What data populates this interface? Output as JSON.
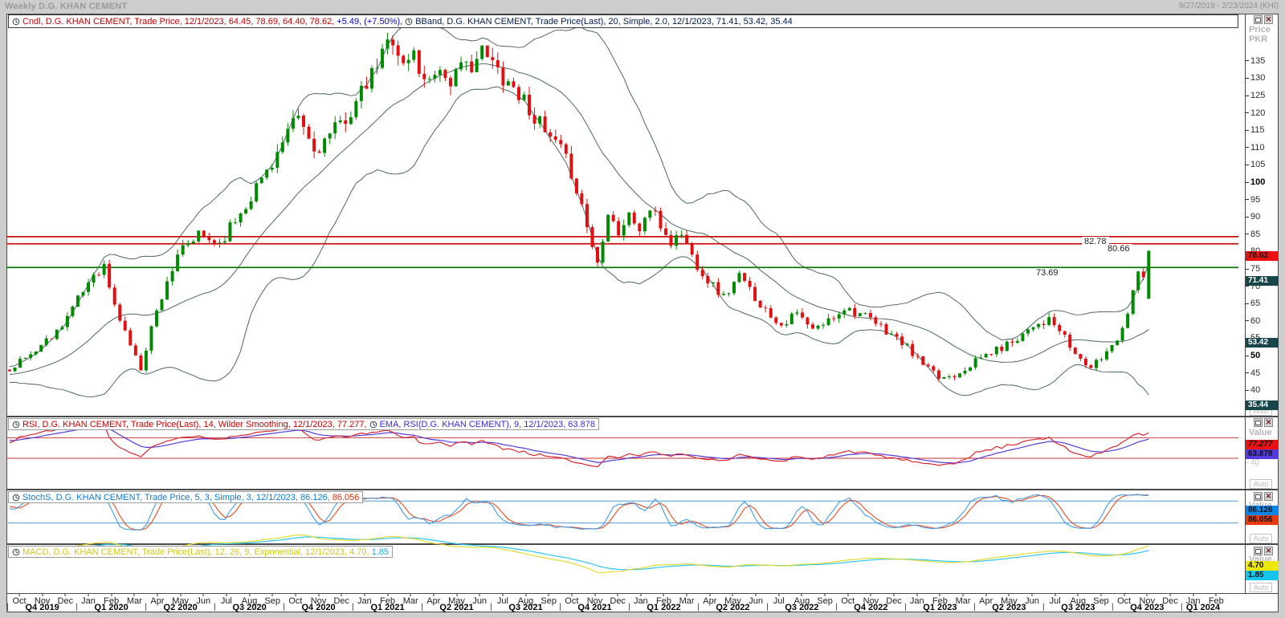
{
  "window": {
    "title": "Weekly D.G. KHAN CEMENT",
    "date_range": "9/27/2019 - 2/23/2024 (KHI)"
  },
  "panels": {
    "price": {
      "legend": {
        "candle": "Cndl, D.G. KHAN CEMENT, Trade Price,  12/1/2023, 64.45, 78.69, 64.40, 78.62,",
        "change": "+5.49, (+7.50%),",
        "bband": "BBand, D.G. KHAN CEMENT, Trade Price(Last),  20, Simple, 2.0,  12/1/2023, 71.41, 53.42, 35.44"
      },
      "axis_title_1": "Price",
      "axis_title_2": "PKR",
      "ticks": [
        135,
        130,
        125,
        120,
        115,
        110,
        105,
        100,
        95,
        90,
        85,
        80,
        75,
        70,
        65,
        60,
        55,
        50,
        45,
        40
      ],
      "bold_ticks": [
        100,
        50
      ],
      "last_price_label": "78.62",
      "bband_labels": [
        "71.41",
        "53.42",
        "35.44"
      ],
      "levels": [
        {
          "value": 82.78,
          "label": "82.78",
          "color": "#cc1111"
        },
        {
          "value": 80.66,
          "label": "80.66",
          "color": "#cc1111"
        },
        {
          "value": 73.69,
          "label": "73.69",
          "color": "#0a7a0a"
        }
      ],
      "auto_label": "Auto"
    },
    "rsi": {
      "legend_rsi": "RSI, D.G. KHAN CEMENT, Trade Price(Last),  14, Wilder Smoothing,  12/1/2023, 77.277,",
      "legend_ema": "EMA, RSI(D.G. KHAN CEMENT),  9,  12/1/2023, 63.878",
      "axis_title": "Value",
      "value_label": "77.277",
      "ema_label": "63.878",
      "tick": "40",
      "ref_lines": [
        70,
        30
      ],
      "auto_label": "Auto"
    },
    "stoch": {
      "legend_k": "StochS, D.G. KHAN CEMENT, Trade Price,  5, 3, Simple, 3,  12/1/2023, 86.126,",
      "legend_d": "86.056",
      "axis_title": "Value",
      "k_label": "86.126",
      "d_label": "86.056",
      "tick": "50",
      "ref_lines": [
        80,
        20
      ],
      "auto_label": "Auto"
    },
    "macd": {
      "legend_macd": "MACD, D.G. KHAN CEMENT, Trade Price(Last),  12, 26, 9, Exponential,  12/1/2023, 4.70,",
      "legend_signal": "1.85",
      "axis_title": "Value",
      "macd_label": "4.70",
      "signal_label": "1.85",
      "auto_label": "Auto"
    }
  },
  "x_axis": {
    "months": [
      "Oct",
      "Nov",
      "Dec",
      "Jan",
      "Feb",
      "Mar",
      "Apr",
      "May",
      "Jun",
      "Jul",
      "Aug",
      "Sep",
      "Oct",
      "Nov",
      "Dec",
      "Jan",
      "Feb",
      "Mar",
      "Apr",
      "May",
      "Jun",
      "Jul",
      "Aug",
      "Sep",
      "Oct",
      "Nov",
      "Dec",
      "Jan",
      "Feb",
      "Mar",
      "Apr",
      "May",
      "Jun",
      "Jul",
      "Aug",
      "Sep",
      "Oct",
      "Nov",
      "Dec",
      "Jan",
      "Feb",
      "Mar",
      "Apr",
      "May",
      "Jun",
      "Jul",
      "Aug",
      "Sep",
      "Oct",
      "Nov",
      "Dec",
      "Jan",
      "Feb"
    ],
    "quarters": [
      "Q4 2019",
      "Q1 2020",
      "Q2 2020",
      "Q3 2020",
      "Q4 2020",
      "Q1 2021",
      "Q2 2021",
      "Q3 2021",
      "Q4 2021",
      "Q1 2022",
      "Q2 2022",
      "Q3 2022",
      "Q4 2022",
      "Q1 2023",
      "Q2 2023",
      "Q3 2023",
      "Q4 2023",
      "Q1 2024"
    ]
  },
  "chart_data": {
    "type": "candlestick",
    "symbol": "D.G. KHAN CEMENT",
    "interval": "weekly",
    "date_range": "9/27/2019 - 2/23/2024",
    "price_axis": {
      "unit": "PKR",
      "visible_range": [
        33,
        146
      ]
    },
    "last_candle": {
      "date": "12/1/2023",
      "o": 64.45,
      "h": 78.69,
      "l": 64.4,
      "c": 78.62,
      "change": "+5.49",
      "change_pct": "+7.50%"
    },
    "bollinger": {
      "period": 20,
      "method": "Simple",
      "width": 2.0,
      "upper": 71.41,
      "mid": 53.42,
      "lower": 35.44
    },
    "rsi": {
      "period": 14,
      "smoothing": "Wilder Smoothing",
      "value": 77.277,
      "ema_period": 9,
      "ema_value": 63.878,
      "ref_lines": [
        70,
        30
      ]
    },
    "stochastic": {
      "k": 5,
      "slowing": 3,
      "method": "Simple",
      "d": 3,
      "k_value": 86.126,
      "d_value": 86.056,
      "ref_lines": [
        80,
        20
      ]
    },
    "macd": {
      "fast": 12,
      "slow": 26,
      "signal": 9,
      "method": "Exponential",
      "macd_value": 4.7,
      "signal_value": 1.85
    },
    "horizontal_levels": [
      82.78,
      80.66,
      73.69
    ],
    "close_keypoints": [
      [
        -45,
        36
      ],
      [
        -30,
        38
      ],
      [
        -20,
        40
      ],
      [
        -10,
        42
      ],
      [
        -4,
        43
      ],
      [
        0,
        44
      ],
      [
        4,
        48
      ],
      [
        9,
        55
      ],
      [
        13,
        64
      ],
      [
        16,
        72
      ],
      [
        18,
        74
      ],
      [
        20,
        62
      ],
      [
        22,
        55
      ],
      [
        24,
        47
      ],
      [
        25,
        44
      ],
      [
        27,
        56
      ],
      [
        30,
        70
      ],
      [
        33,
        79
      ],
      [
        36,
        83
      ],
      [
        40,
        81
      ],
      [
        44,
        90
      ],
      [
        48,
        100
      ],
      [
        52,
        110
      ],
      [
        55,
        118
      ],
      [
        58,
        108
      ],
      [
        62,
        114
      ],
      [
        66,
        122
      ],
      [
        69,
        130
      ],
      [
        72,
        140
      ],
      [
        73,
        142
      ],
      [
        75,
        133
      ],
      [
        77,
        137
      ],
      [
        79,
        128
      ],
      [
        81,
        133
      ],
      [
        84,
        129
      ],
      [
        87,
        133
      ],
      [
        90,
        137
      ],
      [
        93,
        132
      ],
      [
        96,
        127
      ],
      [
        99,
        121
      ],
      [
        102,
        113
      ],
      [
        105,
        108
      ],
      [
        107,
        102
      ],
      [
        109,
        92
      ],
      [
        111,
        80
      ],
      [
        112,
        75
      ],
      [
        114,
        91
      ],
      [
        116,
        84
      ],
      [
        118,
        89
      ],
      [
        120,
        85
      ],
      [
        122,
        91
      ],
      [
        124,
        86
      ],
      [
        126,
        81
      ],
      [
        128,
        84
      ],
      [
        130,
        77
      ],
      [
        133,
        70
      ],
      [
        136,
        65
      ],
      [
        139,
        71
      ],
      [
        141,
        67
      ],
      [
        144,
        61
      ],
      [
        147,
        57
      ],
      [
        150,
        60
      ],
      [
        153,
        55
      ],
      [
        156,
        58
      ],
      [
        159,
        62
      ],
      [
        162,
        60
      ],
      [
        165,
        57
      ],
      [
        168,
        54
      ],
      [
        171,
        50
      ],
      [
        174,
        45
      ],
      [
        177,
        41
      ],
      [
        180,
        42
      ],
      [
        183,
        45
      ],
      [
        186,
        48
      ],
      [
        189,
        50
      ],
      [
        192,
        53
      ],
      [
        195,
        57
      ],
      [
        198,
        58
      ],
      [
        200,
        55
      ],
      [
        203,
        48
      ],
      [
        206,
        44
      ],
      [
        208,
        47
      ],
      [
        211,
        53
      ],
      [
        213,
        60
      ],
      [
        214,
        67
      ],
      [
        215,
        72.5
      ],
      [
        216,
        70.8
      ],
      [
        217,
        78.62
      ]
    ],
    "weeks_visible": 218
  },
  "colors": {
    "up": "#008a00",
    "down": "#e01010",
    "band": "#4d6464",
    "level_red": "#cc1111",
    "level_green": "#0a7a0a",
    "rsi": "#d8242c",
    "rsi_ema": "#5239e0",
    "rsi_ref": "#c23232",
    "stoch_k": "#3f9be8",
    "stoch_d": "#e84b1c",
    "stoch_ref": "#4f9bd8",
    "macd": "#e2da2e",
    "macd_signal": "#27c6f0",
    "last_price_bg": "#ee1111",
    "bband_label_bg": "#17474a",
    "rsi_chip_bg": "#ee1111",
    "ema_chip_bg": "#5239e0",
    "k_chip_bg": "#0a86e8",
    "d_chip_bg": "#e83a10",
    "macd_chip_bg": "#ece80a",
    "signal_chip_bg": "#12c6ee"
  }
}
